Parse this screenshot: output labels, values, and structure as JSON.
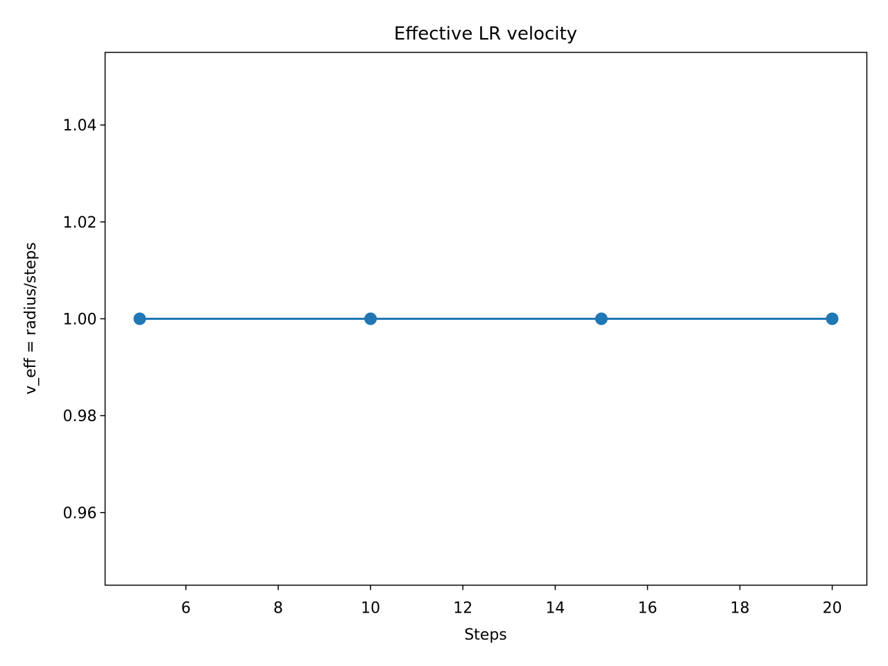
{
  "chart_data": {
    "type": "line",
    "title": "Effective LR velocity",
    "xlabel": "Steps",
    "ylabel": "v_eff = radius/steps",
    "xlim": [
      4.25,
      20.75
    ],
    "ylim": [
      0.945,
      1.055
    ],
    "xticks": [
      6,
      8,
      10,
      12,
      14,
      16,
      18,
      20
    ],
    "yticks": [
      0.96,
      0.98,
      1.0,
      1.02,
      1.04
    ],
    "ytick_labels": [
      "0.96",
      "0.98",
      "1.00",
      "1.02",
      "1.04"
    ],
    "grid": false,
    "series": [
      {
        "x": [
          5,
          10,
          15,
          20
        ],
        "y": [
          1.0,
          1.0,
          1.0,
          1.0
        ],
        "color": "#1f77b4",
        "marker": "circle"
      }
    ]
  }
}
